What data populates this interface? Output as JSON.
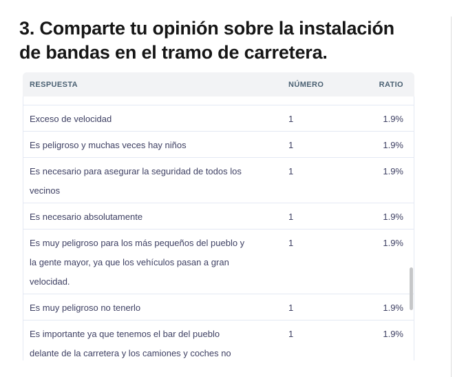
{
  "question": {
    "title": [
      "3. Comparte tu opinión sobre la instalación",
      "de bandas en el tramo de carretera."
    ]
  },
  "table": {
    "columns": [
      {
        "key": "respuesta",
        "label": "RESPUESTA"
      },
      {
        "key": "numero",
        "label": "NÚMERO"
      },
      {
        "key": "ratio",
        "label": "RATIO"
      }
    ],
    "rows": [
      {
        "respuesta": "Exceso de velocidad",
        "numero": "1",
        "ratio": "1.9%"
      },
      {
        "respuesta": "Es peligroso y muchas veces hay niños",
        "numero": "1",
        "ratio": "1.9%"
      },
      {
        "respuesta": [
          "Es necesario para asegurar la seguridad de todos los",
          "vecinos"
        ],
        "numero": "1",
        "ratio": "1.9%"
      },
      {
        "respuesta": "Es necesario absolutamente",
        "numero": "1",
        "ratio": "1.9%"
      },
      {
        "respuesta": [
          "Es muy peligroso para los más pequeños del pueblo y",
          "la gente mayor, ya que los vehículos pasan a gran",
          "velocidad."
        ],
        "numero": "1",
        "ratio": "1.9%"
      },
      {
        "respuesta": "Es muy peligroso no tenerlo",
        "numero": "1",
        "ratio": "1.9%"
      },
      {
        "respuesta": [
          "Es importante ya que tenemos el bar del pueblo",
          "delante de la carretera y los camiones y coches no"
        ],
        "numero": "1",
        "ratio": "1.9%"
      }
    ]
  },
  "colors": {
    "header_bg": "#f2f3f5",
    "header_text": "#4a6072",
    "row_text": "#3e4063",
    "border": "#e3e8f3",
    "scrollbar_thumb": "#c6c7c9",
    "title_text": "#161616"
  }
}
